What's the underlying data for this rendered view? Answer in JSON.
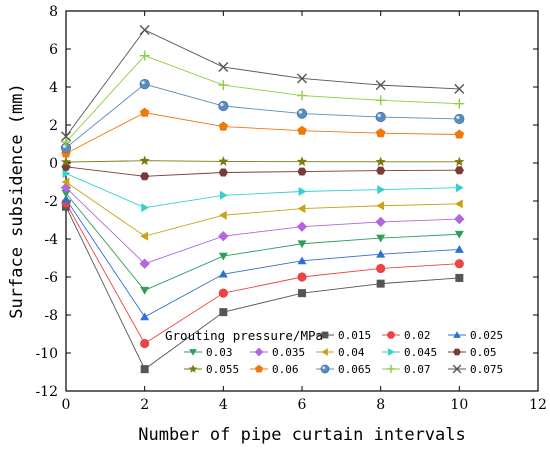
{
  "chart_data": {
    "type": "line",
    "xlabel": "Number of pipe curtain intervals",
    "ylabel": "Surface subsidence (mm)",
    "xlim": [
      0,
      12
    ],
    "ylim": [
      -12,
      8
    ],
    "xticks": [
      0,
      2,
      4,
      6,
      8,
      10,
      12
    ],
    "yticks": [
      -12,
      -10,
      -8,
      -6,
      -4,
      -2,
      0,
      2,
      4,
      6,
      8
    ],
    "x": [
      0,
      2,
      4,
      6,
      8,
      10
    ],
    "legend_title": "Grouting pressure/MPa",
    "legend_position": "bottom-right",
    "grid": false,
    "series": [
      {
        "name": "0.015",
        "color": "#555555",
        "marker": "square",
        "values": [
          -2.3,
          -10.85,
          -7.85,
          -6.85,
          -6.35,
          -6.05
        ]
      },
      {
        "name": "0.02",
        "color": "#e84646",
        "marker": "circle",
        "values": [
          -2.1,
          -9.5,
          -6.85,
          -6.0,
          -5.55,
          -5.3
        ]
      },
      {
        "name": "0.025",
        "color": "#2f6fd6",
        "marker": "triangle-up",
        "values": [
          -1.9,
          -8.1,
          -5.85,
          -5.15,
          -4.8,
          -4.55
        ]
      },
      {
        "name": "0.03",
        "color": "#2e9e5b",
        "marker": "triangle-down",
        "values": [
          -1.6,
          -6.7,
          -4.9,
          -4.25,
          -3.95,
          -3.75
        ]
      },
      {
        "name": "0.035",
        "color": "#b266e0",
        "marker": "diamond",
        "values": [
          -1.3,
          -5.3,
          -3.85,
          -3.35,
          -3.1,
          -2.95
        ]
      },
      {
        "name": "0.04",
        "color": "#c9a316",
        "marker": "triangle-left",
        "values": [
          -1.0,
          -3.85,
          -2.75,
          -2.4,
          -2.25,
          -2.15
        ]
      },
      {
        "name": "0.045",
        "color": "#33d1d1",
        "marker": "triangle-right",
        "values": [
          -0.55,
          -2.35,
          -1.7,
          -1.5,
          -1.4,
          -1.3
        ]
      },
      {
        "name": "0.05",
        "color": "#7a3a3a",
        "marker": "hexagon",
        "values": [
          -0.2,
          -0.7,
          -0.5,
          -0.45,
          -0.4,
          -0.38
        ]
      },
      {
        "name": "0.055",
        "color": "#7a7a10",
        "marker": "star",
        "values": [
          0.05,
          0.12,
          0.08,
          0.07,
          0.06,
          0.06
        ]
      },
      {
        "name": "0.06",
        "color": "#f0780a",
        "marker": "pentagon",
        "values": [
          0.5,
          2.65,
          1.92,
          1.7,
          1.57,
          1.5
        ]
      },
      {
        "name": "0.065",
        "color": "#5a8cbf",
        "marker": "sphere",
        "values": [
          0.8,
          4.15,
          3.0,
          2.6,
          2.42,
          2.32
        ]
      },
      {
        "name": "0.07",
        "color": "#8ccf46",
        "marker": "plus",
        "values": [
          1.1,
          5.65,
          4.1,
          3.55,
          3.3,
          3.12
        ]
      },
      {
        "name": "0.075",
        "color": "#555555",
        "marker": "x",
        "values": [
          1.4,
          7.0,
          5.05,
          4.45,
          4.1,
          3.9
        ]
      }
    ]
  }
}
